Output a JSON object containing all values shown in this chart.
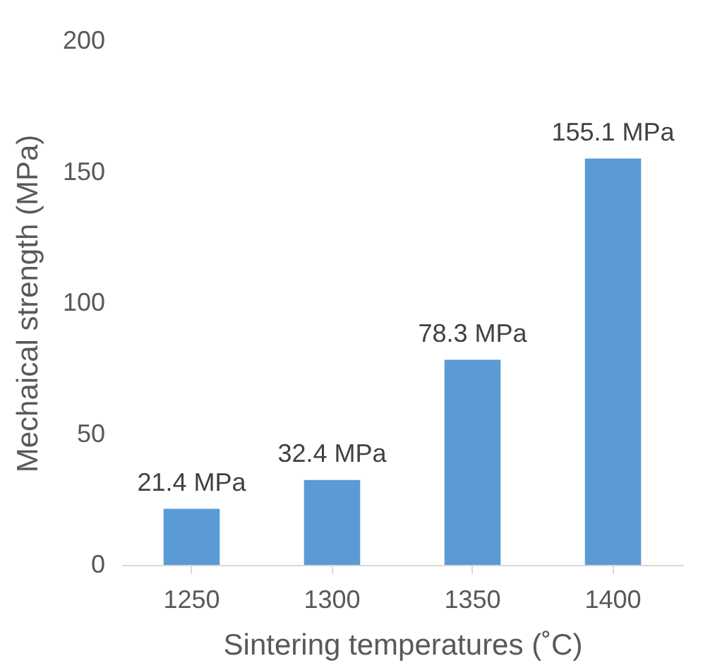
{
  "chart_data": {
    "type": "bar",
    "xlabel": "Sintering temperatures (˚C)",
    "ylabel": "Mechaical strength (MPa)",
    "categories": [
      "1250",
      "1300",
      "1350",
      "1400"
    ],
    "values": [
      21.4,
      32.4,
      78.3,
      155.1
    ],
    "value_labels": [
      "21.4 MPa",
      "32.4 MPa",
      "78.3 MPa",
      "155.1 MPa"
    ],
    "color": "#5b9bd5",
    "ylim": [
      0,
      200
    ],
    "yticks": [
      0,
      50,
      100,
      150,
      200
    ],
    "grid": false
  }
}
